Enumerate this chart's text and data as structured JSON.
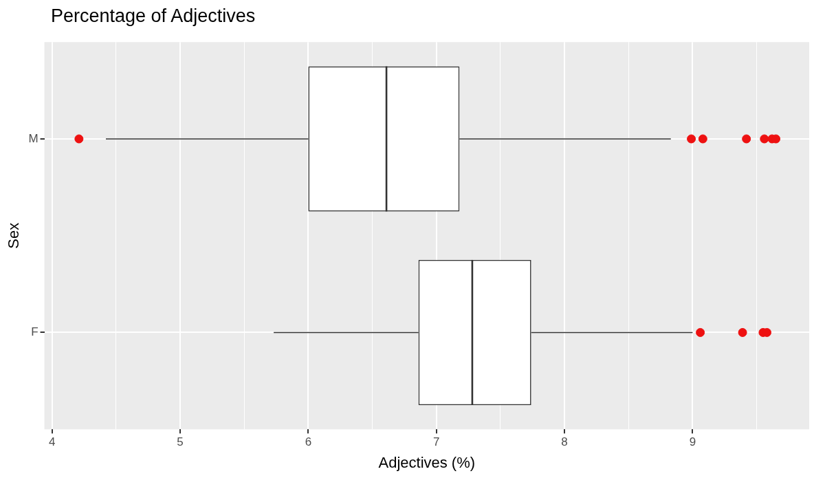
{
  "chart_data": {
    "type": "box",
    "orientation": "horizontal",
    "title": "Percentage of Adjectives",
    "xlabel": "Adjectives (%)",
    "ylabel": "Sex",
    "categories": [
      "M",
      "F"
    ],
    "series": [
      {
        "color": "#333333",
        "boxes": [
          {
            "low": 4.42,
            "q1": 6.0,
            "median": 6.61,
            "q3": 7.18,
            "high": 8.83,
            "outliers": [
              4.21,
              8.99,
              9.08,
              9.42,
              9.56,
              9.62,
              9.65
            ]
          },
          {
            "low": 5.73,
            "q1": 6.86,
            "median": 7.28,
            "q3": 7.74,
            "high": 9.0,
            "outliers": [
              9.06,
              9.39,
              9.55,
              9.58
            ]
          }
        ]
      }
    ],
    "xlim": [
      3.94,
      9.91
    ],
    "xticks": [
      4,
      {
        "value": 4.5,
        "label": null
      },
      5,
      {
        "value": 5.5,
        "label": null
      },
      6,
      {
        "value": 6.5,
        "label": null
      },
      7,
      {
        "value": 7.5,
        "label": null
      },
      8,
      {
        "value": 8.5,
        "label": null
      },
      9,
      {
        "value": 9.5,
        "label": null
      }
    ],
    "grid": true,
    "legend": false
  }
}
